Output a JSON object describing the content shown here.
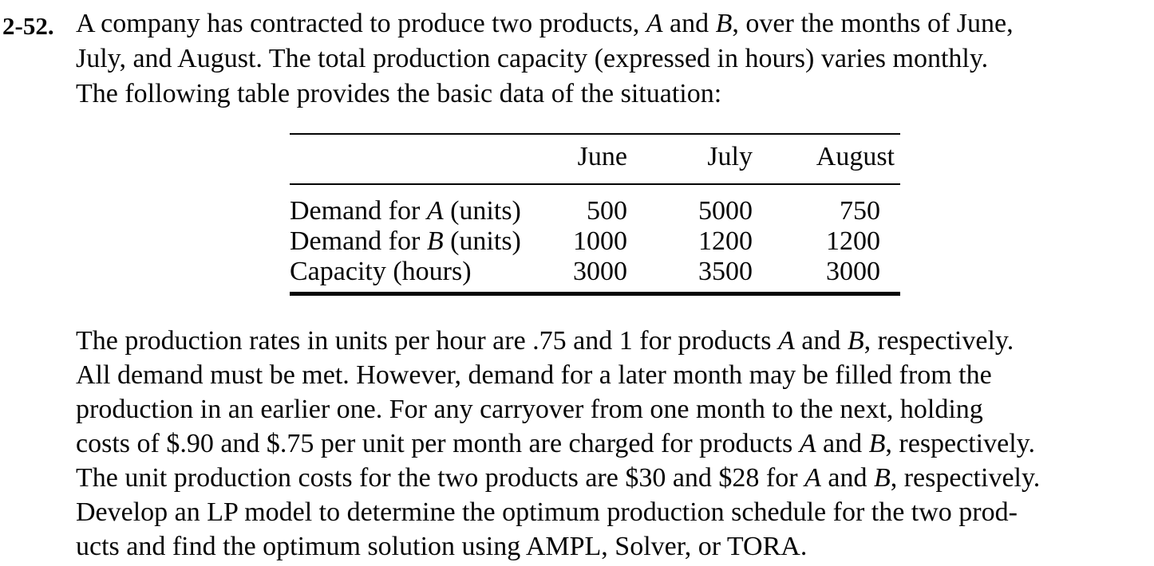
{
  "problem": {
    "number": "2-52.",
    "intro_lines": [
      [
        {
          "t": "A company has contracted to produce two products, "
        },
        {
          "t": "A",
          "i": true
        },
        {
          "t": " and "
        },
        {
          "t": "B",
          "i": true
        },
        {
          "t": ", over the months of June,"
        }
      ],
      [
        {
          "t": "July, and August. The total production capacity (expressed in hours) varies monthly."
        }
      ],
      [
        {
          "t": "The following table provides the basic data of the situation:"
        }
      ]
    ],
    "body_lines": [
      [
        {
          "t": "The production rates in units per hour are .75 and 1 for products "
        },
        {
          "t": "A",
          "i": true
        },
        {
          "t": " and "
        },
        {
          "t": "B",
          "i": true
        },
        {
          "t": ", respectively."
        }
      ],
      [
        {
          "t": "All demand must be met. However, demand for a later month may be filled from the"
        }
      ],
      [
        {
          "t": "production in an earlier one. For any carryover from one month to the next, holding"
        }
      ],
      [
        {
          "t": "costs of $.90 and $.75 per unit per month are charged for products "
        },
        {
          "t": "A",
          "i": true
        },
        {
          "t": " and "
        },
        {
          "t": "B",
          "i": true
        },
        {
          "t": ", respectively."
        }
      ],
      [
        {
          "t": "The unit production costs for the two products are $30 and $28 for "
        },
        {
          "t": "A",
          "i": true
        },
        {
          "t": " and "
        },
        {
          "t": "B",
          "i": true
        },
        {
          "t": ", respectively."
        }
      ],
      [
        {
          "t": "Develop an LP model to determine the optimum production schedule for the two prod-"
        }
      ],
      [
        {
          "t": "ucts and find the optimum solution using AMPL, Solver, or TORA."
        }
      ]
    ]
  },
  "table": {
    "column_headers": [
      "June",
      "July",
      "August"
    ],
    "rows": [
      {
        "label": [
          {
            "t": "Demand for "
          },
          {
            "t": "A",
            "i": true
          },
          {
            "t": " (units)"
          }
        ],
        "values": [
          "500",
          "5000",
          "750"
        ]
      },
      {
        "label": [
          {
            "t": "Demand for "
          },
          {
            "t": "B",
            "i": true
          },
          {
            "t": " (units)"
          }
        ],
        "values": [
          "1000",
          "1200",
          "1200"
        ]
      },
      {
        "label": [
          {
            "t": "Capacity (hours)"
          }
        ],
        "values": [
          "3000",
          "3500",
          "3000"
        ]
      }
    ]
  }
}
